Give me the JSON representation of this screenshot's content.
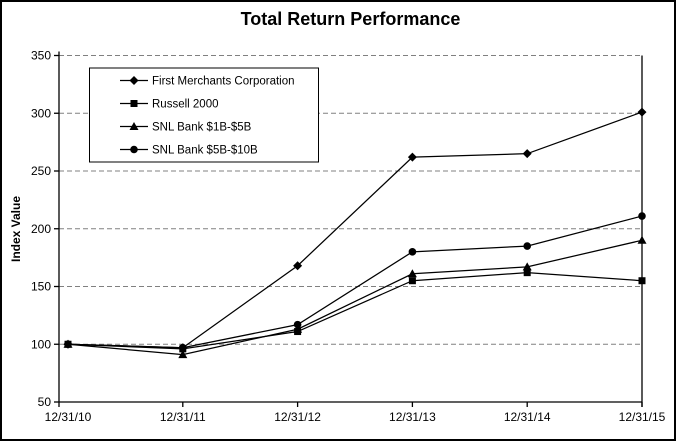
{
  "title": "Total Return Performance",
  "colors": {
    "background": "#ffffff",
    "border": "#000000",
    "series_line": "#000000",
    "gridline": "#808080",
    "text": "#000000",
    "legend_background": "#ffffff",
    "legend_border": "#000000"
  },
  "chart_data": {
    "type": "line",
    "title": "Total Return Performance",
    "xlabel": "",
    "ylabel": "Index Value",
    "x": [
      "12/31/10",
      "12/31/11",
      "12/31/12",
      "12/31/13",
      "12/31/14",
      "12/31/15"
    ],
    "ylim": [
      50,
      350
    ],
    "yticks": [
      50,
      100,
      150,
      200,
      250,
      300,
      350
    ],
    "grid": "horizontal-dashed",
    "legend_position": "upper-left-inside",
    "series": [
      {
        "name": "First Merchants Corporation",
        "marker": "diamond",
        "values": [
          100,
          97,
          168,
          262,
          265,
          301
        ]
      },
      {
        "name": "Russell 2000",
        "marker": "square",
        "values": [
          100,
          96,
          111,
          155,
          162,
          155
        ]
      },
      {
        "name": "SNL Bank $1B-$5B",
        "marker": "triangle",
        "values": [
          100,
          91,
          113,
          161,
          167,
          190
        ]
      },
      {
        "name": "SNL Bank $5B-$10B",
        "marker": "circle",
        "values": [
          100,
          97,
          117,
          180,
          185,
          211
        ]
      }
    ]
  }
}
